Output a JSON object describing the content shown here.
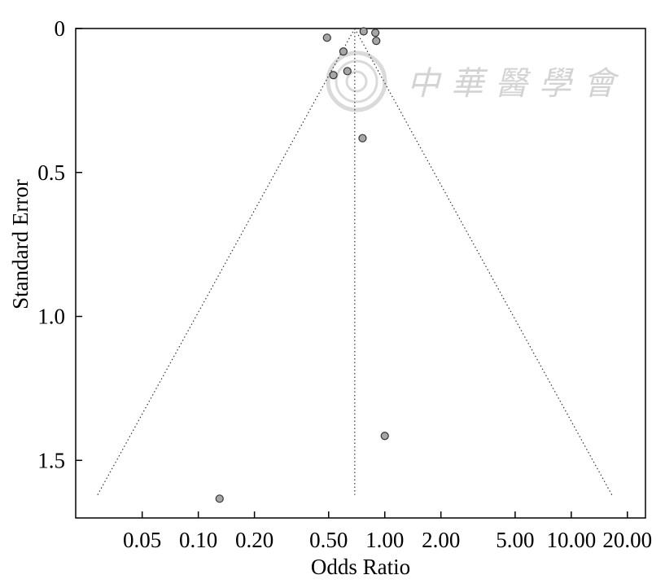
{
  "chart_data": {
    "type": "scatter",
    "title": "",
    "xlabel": "Odds Ratio",
    "ylabel": "Standard Error",
    "x_scale": "log",
    "xlim": [
      0.022,
      25
    ],
    "ylim": [
      0,
      1.7
    ],
    "y_inverted": true,
    "x_ticks": [
      0.05,
      0.1,
      0.2,
      0.5,
      1.0,
      2.0,
      5.0,
      10.0,
      20.0
    ],
    "x_tick_labels": [
      "0.05",
      "0.10",
      "0.20",
      "0.50",
      "1.00",
      "2.00",
      "5.00",
      "10.00",
      "20.00"
    ],
    "y_ticks": [
      0,
      0.5,
      1.0,
      1.5
    ],
    "y_tick_labels": [
      "0",
      "0.5",
      "1.0",
      "1.5"
    ],
    "grid": false,
    "legend": "none",
    "pooled_or": 0.69,
    "funnel_se_max": 1.62,
    "points": [
      {
        "x": 0.77,
        "y": 0.01
      },
      {
        "x": 0.89,
        "y": 0.015
      },
      {
        "x": 0.49,
        "y": 0.032
      },
      {
        "x": 0.9,
        "y": 0.043
      },
      {
        "x": 0.6,
        "y": 0.08
      },
      {
        "x": 0.63,
        "y": 0.148
      },
      {
        "x": 0.53,
        "y": 0.162
      },
      {
        "x": 0.76,
        "y": 0.381
      },
      {
        "x": 1.0,
        "y": 1.415
      },
      {
        "x": 0.13,
        "y": 1.633
      }
    ],
    "colors": {
      "point_fill": "#a6a6a6",
      "point_stroke": "#333333",
      "axis": "#000000",
      "guide": "#333333"
    }
  },
  "watermark": {
    "text": "中華醫學會"
  }
}
